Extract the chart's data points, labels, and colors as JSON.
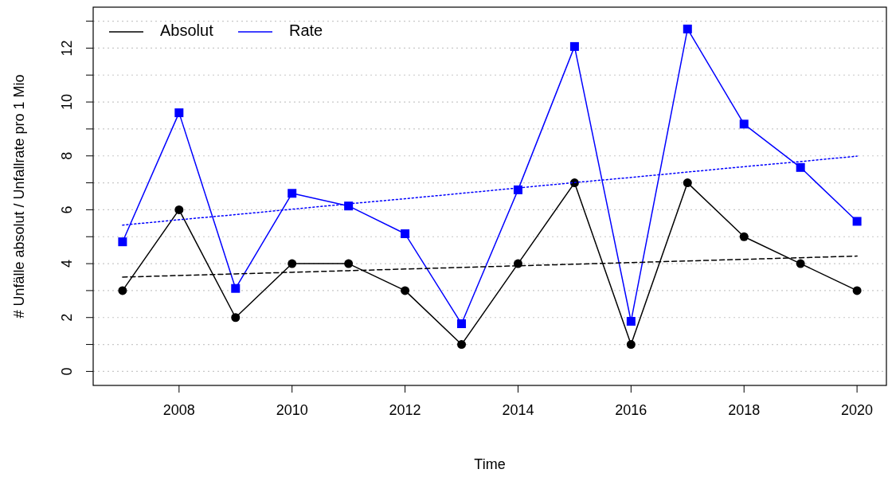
{
  "chart_data": {
    "type": "line",
    "xlabel": "Time",
    "ylabel": "# Unfälle absolut / Unfallrate pro 1 Mio",
    "x": [
      2007,
      2008,
      2009,
      2010,
      2011,
      2012,
      2013,
      2014,
      2015,
      2016,
      2017,
      2018,
      2019,
      2020
    ],
    "series": [
      {
        "name": "Absolut",
        "color": "#000000",
        "marker": "circle",
        "line_style": "solid",
        "values": [
          3,
          6,
          2,
          4,
          4,
          3,
          1,
          4,
          7,
          1,
          7,
          5,
          4,
          3
        ]
      },
      {
        "name": "Rate",
        "color": "#0000ff",
        "marker": "square",
        "line_style": "solid",
        "values": [
          4.81,
          9.6,
          3.08,
          6.61,
          6.14,
          5.11,
          1.77,
          6.74,
          12.06,
          1.86,
          12.71,
          9.18,
          7.57,
          5.57
        ]
      },
      {
        "type": "line",
        "color": "#000000",
        "marker": "none",
        "line_style": "dashed",
        "values": [
          3.5,
          3.56,
          3.62,
          3.68,
          3.74,
          3.8,
          3.86,
          3.92,
          3.98,
          4.04,
          4.1,
          4.16,
          4.22,
          4.28
        ]
      },
      {
        "type": "line",
        "color": "#0000ff",
        "marker": "none",
        "line_style": "dotted",
        "values": [
          5.43,
          5.63,
          5.82,
          6.02,
          6.22,
          6.41,
          6.61,
          6.81,
          7.01,
          7.2,
          7.4,
          7.6,
          7.79,
          7.99
        ]
      }
    ],
    "xlim": [
      2006.48,
      2020.52
    ],
    "xticks": [
      2008,
      2010,
      2012,
      2014,
      2016,
      2018,
      2020
    ],
    "ylim": [
      -0.52,
      13.52
    ],
    "yticks": [
      0,
      {
        "value": 1,
        "label": null
      },
      2,
      {
        "value": 3,
        "label": null
      },
      4,
      {
        "value": 5,
        "label": null
      },
      6,
      {
        "value": 7,
        "label": null
      },
      8,
      {
        "value": 9,
        "label": null
      },
      10,
      {
        "value": 11,
        "label": null
      },
      12,
      {
        "value": 13,
        "label": null
      }
    ],
    "grid": "y",
    "legend": "top left"
  }
}
